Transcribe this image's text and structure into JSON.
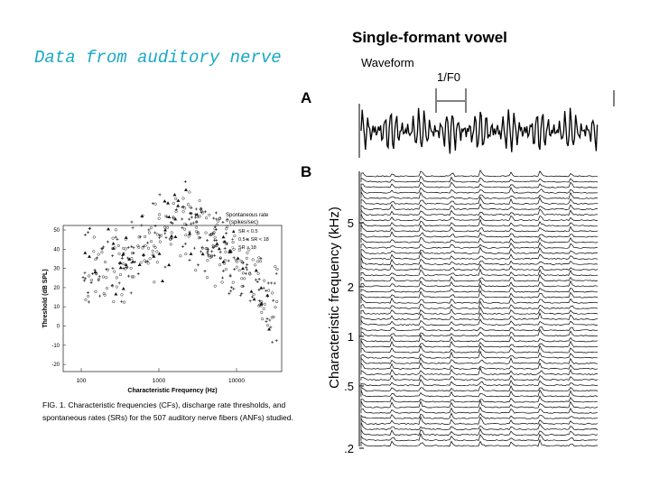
{
  "title": "Data from auditory nerve",
  "left_figure": {
    "y_label": "Threshold (dB SPL)",
    "y_ticks": [
      "50",
      "40",
      "30",
      "20",
      "10",
      "0",
      "-10",
      "-20"
    ],
    "x_ticks": [
      "100",
      "1000",
      "10000"
    ],
    "x_label": "Characteristic Frequency (Hz)",
    "legend_title": [
      "Spontaneous rate",
      "(spikes/sec)"
    ],
    "legend": [
      "SR < 0.5",
      "0.5 ≤ SR < 18",
      "SR ≥ 18"
    ],
    "caption": [
      "FIG. 1.  Characteristic frequencies (CFs), discharge rate thresholds, and",
      "spontaneous rates (SRs) for the 507 auditory nerve fibers (ANFs) studied."
    ]
  },
  "right_figure": {
    "title": "Single-formant vowel",
    "waveform_label": "Waveform",
    "period_label": "1/F0",
    "panel_a": "A",
    "panel_b": "B",
    "y_label": "Characteristic frequency (kHz)",
    "y_ticks": [
      "5",
      "2",
      "1",
      ".5",
      ".2"
    ]
  }
}
